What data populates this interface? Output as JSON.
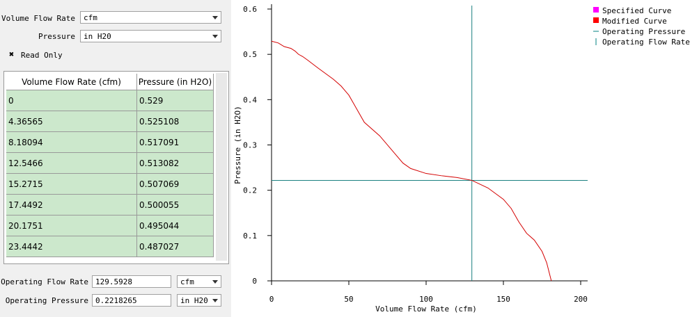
{
  "form": {
    "flow_label": "Volume Flow Rate",
    "flow_unit": "cfm",
    "pressure_label": "Pressure",
    "pressure_unit": "in H20",
    "read_only": "Read Only"
  },
  "table": {
    "columns": [
      "Volume Flow Rate (cfm)",
      "Pressure (in H2O)"
    ],
    "rows": [
      [
        "0",
        "0.529"
      ],
      [
        "4.36565",
        "0.525108"
      ],
      [
        "8.18094",
        "0.517091"
      ],
      [
        "12.5466",
        "0.513082"
      ],
      [
        "15.2715",
        "0.507069"
      ],
      [
        "17.4492",
        "0.500055"
      ],
      [
        "20.1751",
        "0.495044"
      ],
      [
        "23.4442",
        "0.487027"
      ]
    ]
  },
  "operating": {
    "flow_label": "Operating Flow Rate",
    "flow_value": "129.5928",
    "flow_unit": "cfm",
    "pressure_label": "Operating Pressure",
    "pressure_value": "0.2218265",
    "pressure_unit": "in H20"
  },
  "chart_data": {
    "type": "line",
    "x_label": "Volume Flow Rate (cfm)",
    "y_label": "Pressure (in H2O)",
    "x": [
      0,
      4.36565,
      8.18094,
      12.5466,
      15.2715,
      17.4492,
      20.1751,
      23.4442,
      30,
      40,
      45,
      50,
      55,
      60,
      70,
      80,
      85,
      90,
      100,
      110,
      120,
      129.5928,
      140,
      150,
      155,
      160,
      165,
      170,
      175,
      178,
      181
    ],
    "series": [
      {
        "color": "#d40000",
        "values": [
          0.529,
          0.525108,
          0.517091,
          0.513082,
          0.507069,
          0.500055,
          0.495044,
          0.487027,
          0.47,
          0.445,
          0.43,
          0.41,
          0.38,
          0.35,
          0.32,
          0.28,
          0.26,
          0.248,
          0.237,
          0.232,
          0.228,
          0.2218265,
          0.205,
          0.18,
          0.16,
          0.13,
          0.105,
          0.09,
          0.065,
          0.04,
          0
        ]
      }
    ],
    "legend": [
      {
        "name": "Specified Curve",
        "color": "#ff00ff",
        "symbol": "square"
      },
      {
        "name": "Modified Curve",
        "color": "#ff0000",
        "symbol": "square"
      },
      {
        "name": "Operating Pressure",
        "color": "#008080",
        "symbol": "hline"
      },
      {
        "name": "Operating Flow Rate",
        "color": "#008080",
        "symbol": "vline"
      }
    ],
    "operating_point": {
      "x": 129.5928,
      "y": 0.2218265,
      "color": "#1a8080"
    },
    "xlim": [
      0,
      200
    ],
    "xticks": [
      0,
      50,
      100,
      150,
      200
    ],
    "ylim": [
      0,
      0.6
    ],
    "yticks": [
      0,
      0.1,
      0.2,
      0.3,
      0.4,
      0.5,
      0.6
    ]
  }
}
